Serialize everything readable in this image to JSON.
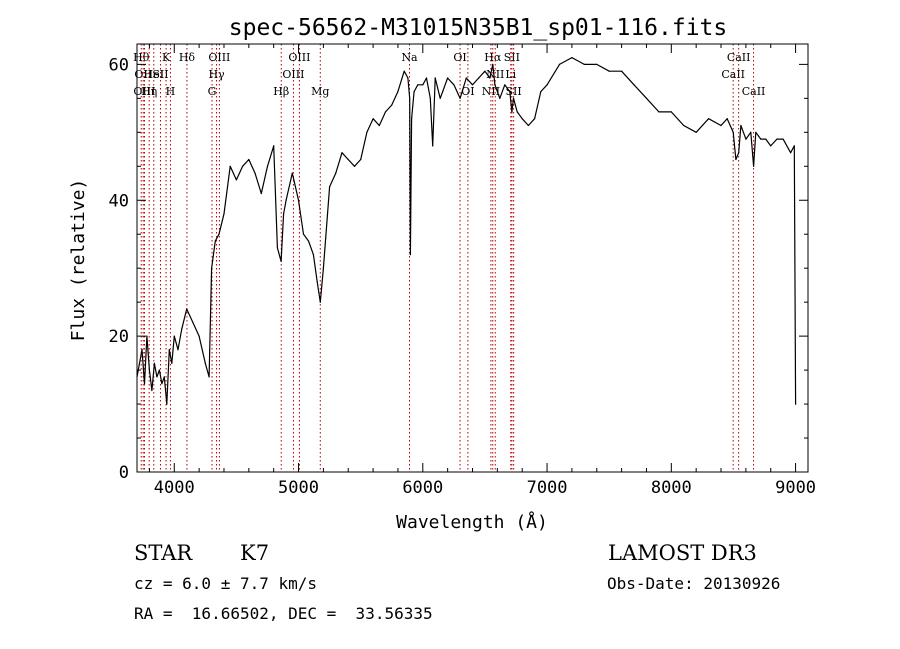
{
  "chart_data": {
    "type": "line",
    "title": "spec-56562-M31015N35B1_sp01-116.fits",
    "xlabel": "Wavelength (Å)",
    "ylabel": "Flux (relative)",
    "xlim": [
      3700,
      9100
    ],
    "ylim": [
      0,
      63
    ],
    "xticks": [
      4000,
      5000,
      6000,
      7000,
      8000,
      9000
    ],
    "yticks": [
      0,
      20,
      40,
      60
    ],
    "grid": false,
    "series": [
      {
        "name": "spectrum",
        "color": "#000000",
        "x": [
          3700,
          3720,
          3740,
          3760,
          3780,
          3800,
          3820,
          3840,
          3860,
          3880,
          3900,
          3920,
          3940,
          3960,
          3980,
          4000,
          4030,
          4060,
          4100,
          4150,
          4200,
          4250,
          4280,
          4300,
          4330,
          4360,
          4400,
          4450,
          4500,
          4550,
          4600,
          4650,
          4700,
          4750,
          4800,
          4830,
          4860,
          4880,
          4900,
          4950,
          5000,
          5040,
          5080,
          5120,
          5150,
          5175,
          5200,
          5250,
          5300,
          5350,
          5400,
          5450,
          5500,
          5550,
          5600,
          5650,
          5700,
          5750,
          5800,
          5850,
          5880,
          5895,
          5900,
          5910,
          5930,
          5960,
          6000,
          6030,
          6060,
          6080,
          6100,
          6140,
          6160,
          6200,
          6250,
          6300,
          6350,
          6400,
          6450,
          6500,
          6540,
          6563,
          6580,
          6620,
          6660,
          6700,
          6717,
          6730,
          6760,
          6800,
          6850,
          6900,
          6950,
          7000,
          7100,
          7200,
          7300,
          7400,
          7500,
          7600,
          7700,
          7800,
          7900,
          8000,
          8100,
          8200,
          8300,
          8400,
          8450,
          8498,
          8520,
          8542,
          8560,
          8600,
          8640,
          8662,
          8680,
          8720,
          8760,
          8800,
          8850,
          8900,
          8960,
          8990,
          9000
        ],
        "values": [
          14,
          16,
          18,
          13,
          20,
          15,
          12,
          16,
          14,
          15,
          13,
          14,
          10,
          18,
          16,
          20,
          18,
          21,
          24,
          22,
          20,
          16,
          14,
          30,
          34,
          35,
          38,
          45,
          43,
          45,
          46,
          44,
          41,
          45,
          48,
          33,
          31,
          38,
          40,
          44,
          40,
          35,
          34,
          32,
          28,
          25,
          30,
          42,
          44,
          47,
          46,
          45,
          46,
          50,
          52,
          51,
          53,
          54,
          56,
          59,
          58,
          55,
          32,
          52,
          56,
          57,
          57,
          58,
          55,
          48,
          58,
          55,
          56,
          58,
          57,
          55,
          58,
          57,
          58,
          59,
          58,
          60,
          57,
          55,
          57,
          56,
          53,
          55,
          53,
          52,
          51,
          52,
          56,
          57,
          60,
          61,
          60,
          60,
          59,
          59,
          57,
          55,
          53,
          53,
          51,
          50,
          52,
          51,
          52,
          50,
          46,
          47,
          51,
          49,
          50,
          45,
          50,
          49,
          49,
          48,
          49,
          49,
          47,
          48,
          10
        ]
      }
    ],
    "line_markers": [
      {
        "x": 3734,
        "label": "Hθ",
        "row": 0
      },
      {
        "x": 3750,
        "label": "OII",
        "row": 1
      },
      {
        "x": 3760,
        "label": "OIII",
        "row": 2
      },
      {
        "x": 3798,
        "label": "Hη",
        "row": 2
      },
      {
        "x": 3835,
        "label": "HeI",
        "row": 1
      },
      {
        "x": 3889,
        "label": "SII",
        "row": 1
      },
      {
        "x": 3934,
        "label": "K",
        "row": 0
      },
      {
        "x": 3969,
        "label": "H",
        "row": 2
      },
      {
        "x": 4102,
        "label": "Hδ",
        "row": 0
      },
      {
        "x": 4304,
        "label": "G",
        "row": 2
      },
      {
        "x": 4340,
        "label": "Hγ",
        "row": 1
      },
      {
        "x": 4363,
        "label": "OIII",
        "row": 0
      },
      {
        "x": 4861,
        "label": "Hβ",
        "row": 2
      },
      {
        "x": 4959,
        "label": "OIII",
        "row": 1
      },
      {
        "x": 5007,
        "label": "OIII",
        "row": 0
      },
      {
        "x": 5175,
        "label": "Mg",
        "row": 2
      },
      {
        "x": 5893,
        "label": "Na",
        "row": 0
      },
      {
        "x": 6300,
        "label": "OI",
        "row": 0
      },
      {
        "x": 6363,
        "label": "OI",
        "row": 2
      },
      {
        "x": 6548,
        "label": "NII",
        "row": 2
      },
      {
        "x": 6563,
        "label": "Hα",
        "row": 0
      },
      {
        "x": 6583,
        "label": "NII",
        "row": 1
      },
      {
        "x": 6708,
        "label": "Li",
        "row": 1
      },
      {
        "x": 6717,
        "label": "SII",
        "row": 0
      },
      {
        "x": 6731,
        "label": "SII",
        "row": 2
      },
      {
        "x": 8498,
        "label": "CaII",
        "row": 1
      },
      {
        "x": 8542,
        "label": "CaII",
        "row": 0
      },
      {
        "x": 8662,
        "label": "CaII",
        "row": 2
      }
    ]
  },
  "info": {
    "object_class": "STAR",
    "subclass": "K7",
    "survey": "LAMOST DR3",
    "redshift": "cz = 6.0 ± 7.7 km/s",
    "obs_date": "Obs-Date: 20130926",
    "coords": "RA =  16.66502, DEC =  33.56335"
  }
}
